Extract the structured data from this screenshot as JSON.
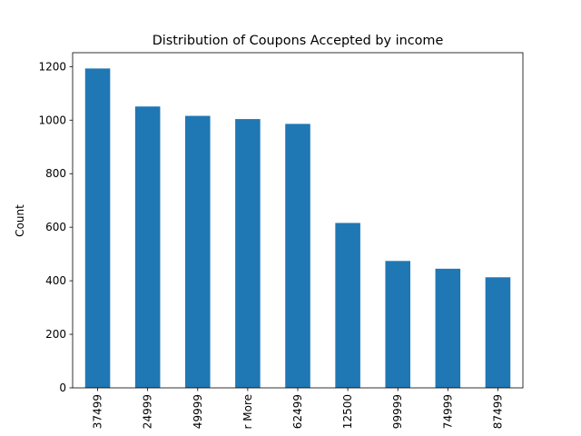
{
  "chart_data": {
    "type": "bar",
    "title": "Distribution of Coupons Accepted by income",
    "xlabel": "",
    "ylabel": "Count",
    "categories": [
      "37499",
      "24999",
      "49999",
      "r More",
      "62499",
      "12500",
      "99999",
      "74999",
      "87499"
    ],
    "values": [
      1193,
      1051,
      1016,
      1004,
      986,
      616,
      474,
      445,
      413
    ],
    "ylim": [
      0,
      1252
    ],
    "yticks": [
      0,
      200,
      400,
      600,
      800,
      1000,
      1200
    ],
    "bar_color": "#1f77b4",
    "grid": false,
    "legend": "none"
  }
}
